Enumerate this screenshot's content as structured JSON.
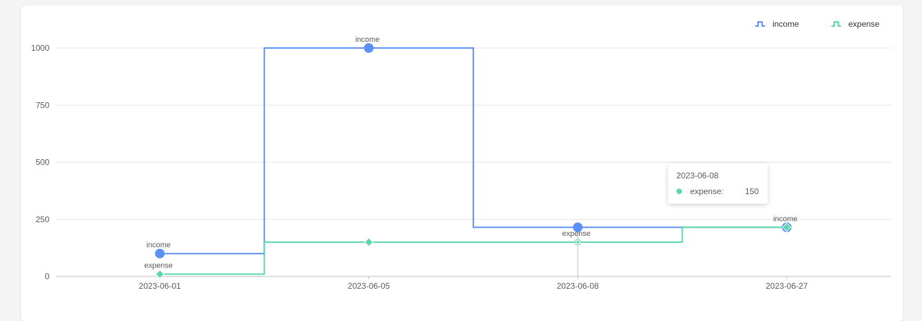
{
  "chart_data": {
    "type": "line",
    "step": true,
    "categories": [
      "2023-06-01",
      "2023-06-05",
      "2023-06-08",
      "2023-06-27"
    ],
    "series": [
      {
        "name": "income",
        "values": [
          100,
          1000,
          215,
          215
        ],
        "color": "#5b8ff9",
        "marker": "circle"
      },
      {
        "name": "expense",
        "values": [
          10,
          150,
          150,
          215
        ],
        "color": "#5ad8a6",
        "marker": "diamond"
      }
    ],
    "ylim": [
      0,
      1000
    ],
    "yticks": [
      0,
      250,
      500,
      750,
      1000
    ],
    "grid": true,
    "legend": "top-right",
    "point_labels": [
      {
        "series": "income",
        "index": 0,
        "text": "income"
      },
      {
        "series": "expense",
        "index": 0,
        "text": "expense"
      },
      {
        "series": "income",
        "index": 1,
        "text": "income"
      },
      {
        "series": "expense",
        "index": 2,
        "text": "expense"
      },
      {
        "series": "income",
        "index": 3,
        "text": "income"
      }
    ],
    "tooltip": {
      "title": "2023-06-08",
      "series": "expense",
      "label": "expense:",
      "value": "150"
    }
  }
}
